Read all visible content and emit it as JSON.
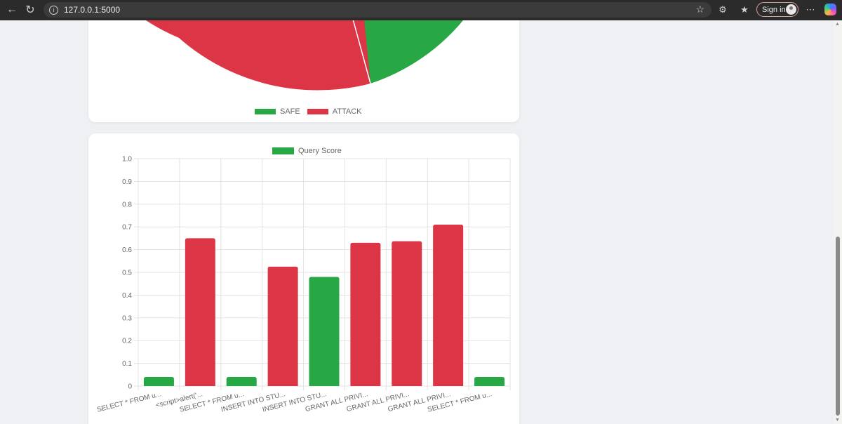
{
  "browser": {
    "url": "127.0.0.1:5000",
    "sign_in_label": "Sign in",
    "icons": [
      "back-icon",
      "reload-icon",
      "info-icon",
      "favorite-star-icon",
      "extensions-icon",
      "favorites-icon",
      "more-icon",
      "copilot-icon"
    ]
  },
  "colors": {
    "safe": "#28a745",
    "attack": "#dc3545"
  },
  "pie_chart": {
    "legend": [
      "SAFE",
      "ATTACK"
    ]
  },
  "chart_data": [
    {
      "type": "pie",
      "labels": [
        "SAFE",
        "ATTACK"
      ],
      "colors": [
        "#28a745",
        "#dc3545"
      ],
      "legend_position": "bottom"
    },
    {
      "type": "bar",
      "legend": "Query Score",
      "legend_position": "top",
      "categories": [
        "SELECT * FROM u...",
        "<script>alert('...",
        "SELECT * FROM u...",
        "INSERT INTO STU...",
        "INSERT INTO STU...",
        "GRANT ALL PRIVI...",
        "GRANT ALL PRIVI...",
        "GRANT ALL PRIVI...",
        "SELECT * FROM u..."
      ],
      "values": [
        0.04,
        0.65,
        0.04,
        0.525,
        0.48,
        0.63,
        0.637,
        0.71,
        0.04
      ],
      "colors": [
        "#28a745",
        "#dc3545",
        "#28a745",
        "#dc3545",
        "#28a745",
        "#dc3545",
        "#dc3545",
        "#dc3545",
        "#28a745"
      ],
      "ylim": [
        0,
        1.0
      ],
      "yticks": [
        "0",
        "0.1",
        "0.2",
        "0.3",
        "0.4",
        "0.5",
        "0.6",
        "0.7",
        "0.8",
        "0.9",
        "1.0"
      ],
      "grid": true
    }
  ]
}
